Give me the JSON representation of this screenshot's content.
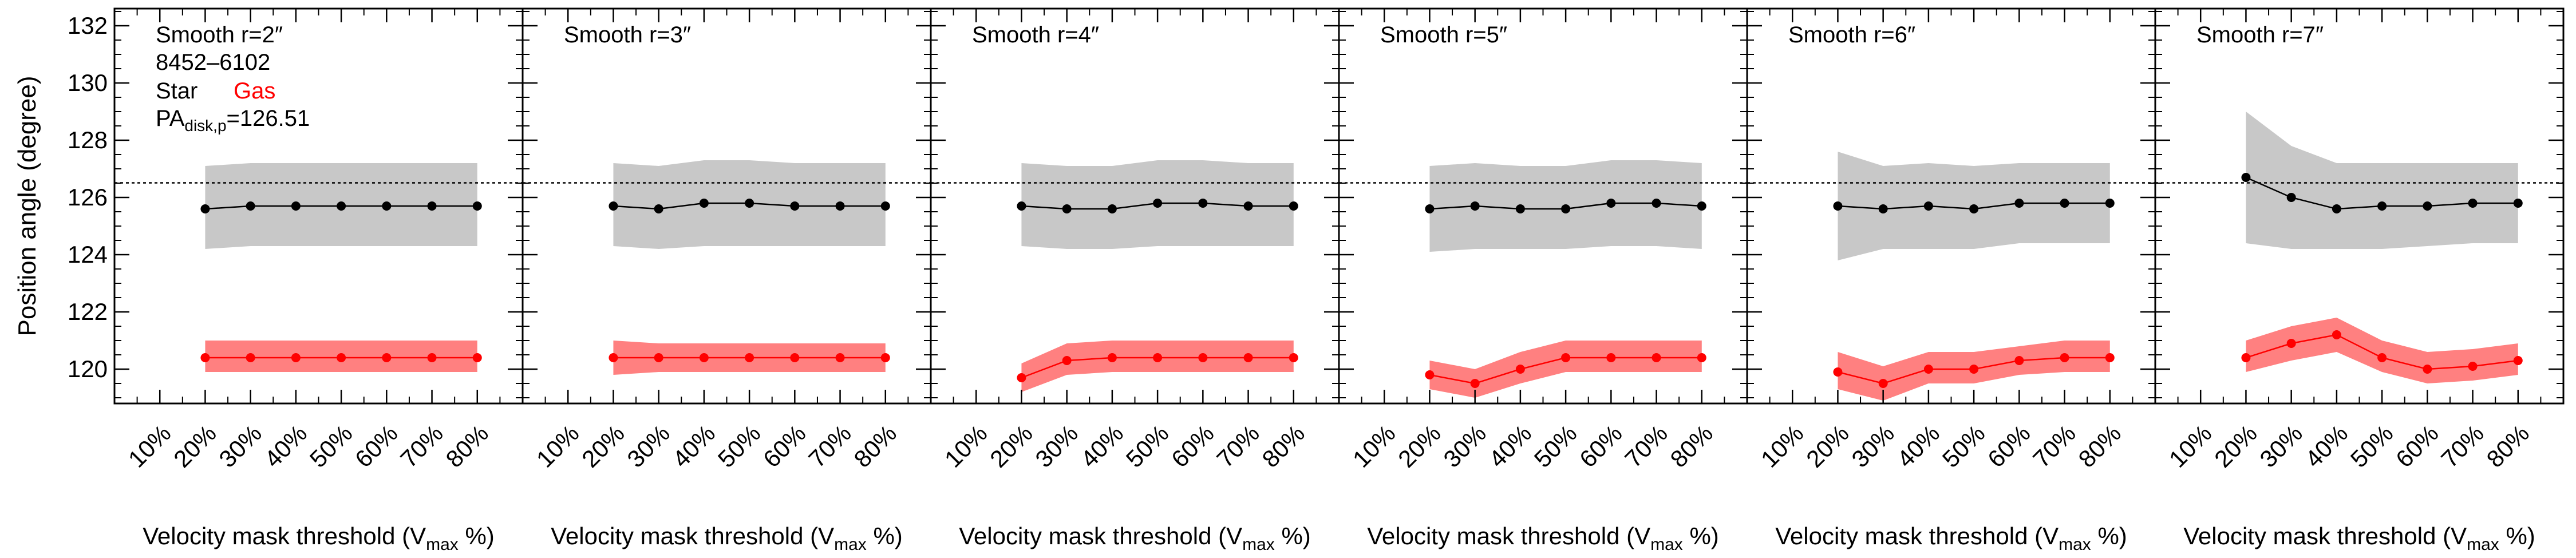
{
  "chart_data": {
    "type": "line",
    "galaxy_id": "8452–6102",
    "legend": {
      "star": "Star",
      "gas": "Gas"
    },
    "pa_label": {
      "main": "PA",
      "sub": "disk,p",
      "value": "=126.51"
    },
    "reference_line": 126.51,
    "ylabel": "Position angle (degree)",
    "xlabel": {
      "pre": "Velocity mask threshold (V",
      "sub": "max",
      "post": " %)"
    },
    "x_categories": [
      "10%",
      "20%",
      "30%",
      "40%",
      "50%",
      "60%",
      "70%",
      "80%"
    ],
    "xlim": [
      0,
      9
    ],
    "ylim": [
      118.8,
      132.6
    ],
    "yticks": [
      120,
      122,
      124,
      126,
      128,
      130,
      132
    ],
    "colors": {
      "star": "#000000",
      "star_band": "#c8c8c8",
      "gas": "#ff0000",
      "gas_band": "#ff8080"
    },
    "panels": [
      {
        "title": "Smooth r=2″",
        "star": {
          "x": [
            2,
            3,
            4,
            5,
            6,
            7,
            8
          ],
          "y": [
            125.6,
            125.7,
            125.7,
            125.7,
            125.7,
            125.7,
            125.7
          ],
          "lo": [
            124.2,
            124.3,
            124.3,
            124.3,
            124.3,
            124.3,
            124.3
          ],
          "hi": [
            127.1,
            127.2,
            127.2,
            127.2,
            127.2,
            127.2,
            127.2
          ]
        },
        "gas": {
          "x": [
            2,
            3,
            4,
            5,
            6,
            7,
            8
          ],
          "y": [
            120.4,
            120.4,
            120.4,
            120.4,
            120.4,
            120.4,
            120.4
          ],
          "lo": [
            119.9,
            119.9,
            119.9,
            119.9,
            119.9,
            119.9,
            119.9
          ],
          "hi": [
            121.0,
            121.0,
            121.0,
            121.0,
            121.0,
            121.0,
            121.0
          ]
        }
      },
      {
        "title": "Smooth r=3″",
        "star": {
          "x": [
            2,
            3,
            4,
            5,
            6,
            7,
            8
          ],
          "y": [
            125.7,
            125.6,
            125.8,
            125.8,
            125.7,
            125.7,
            125.7
          ],
          "lo": [
            124.3,
            124.2,
            124.3,
            124.3,
            124.3,
            124.3,
            124.3
          ],
          "hi": [
            127.2,
            127.1,
            127.3,
            127.3,
            127.2,
            127.2,
            127.2
          ]
        },
        "gas": {
          "x": [
            2,
            3,
            4,
            5,
            6,
            7,
            8
          ],
          "y": [
            120.4,
            120.4,
            120.4,
            120.4,
            120.4,
            120.4,
            120.4
          ],
          "lo": [
            119.8,
            119.9,
            119.9,
            119.9,
            119.9,
            119.9,
            119.9
          ],
          "hi": [
            121.0,
            120.9,
            120.9,
            120.9,
            120.9,
            120.9,
            120.9
          ]
        }
      },
      {
        "title": "Smooth r=4″",
        "star": {
          "x": [
            2,
            3,
            4,
            5,
            6,
            7,
            8
          ],
          "y": [
            125.7,
            125.6,
            125.6,
            125.8,
            125.8,
            125.7,
            125.7
          ],
          "lo": [
            124.3,
            124.2,
            124.2,
            124.3,
            124.3,
            124.3,
            124.3
          ],
          "hi": [
            127.2,
            127.1,
            127.1,
            127.3,
            127.3,
            127.2,
            127.2
          ]
        },
        "gas": {
          "x": [
            2,
            3,
            4,
            5,
            6,
            7,
            8
          ],
          "y": [
            119.7,
            120.3,
            120.4,
            120.4,
            120.4,
            120.4,
            120.4
          ],
          "lo": [
            119.2,
            119.8,
            119.9,
            119.9,
            119.9,
            119.9,
            119.9
          ],
          "hi": [
            120.2,
            120.9,
            121.0,
            121.0,
            121.0,
            121.0,
            121.0
          ]
        }
      },
      {
        "title": "Smooth r=5″",
        "star": {
          "x": [
            2,
            3,
            4,
            5,
            6,
            7,
            8
          ],
          "y": [
            125.6,
            125.7,
            125.6,
            125.6,
            125.8,
            125.8,
            125.7
          ],
          "lo": [
            124.1,
            124.2,
            124.2,
            124.2,
            124.3,
            124.3,
            124.2
          ],
          "hi": [
            127.1,
            127.2,
            127.1,
            127.1,
            127.3,
            127.3,
            127.2
          ]
        },
        "gas": {
          "x": [
            2,
            3,
            4,
            5,
            6,
            7,
            8
          ],
          "y": [
            119.8,
            119.5,
            120.0,
            120.4,
            120.4,
            120.4,
            120.4
          ],
          "lo": [
            119.3,
            119.0,
            119.5,
            119.9,
            119.9,
            119.9,
            119.9
          ],
          "hi": [
            120.3,
            120.0,
            120.6,
            121.0,
            121.0,
            121.0,
            121.0
          ]
        }
      },
      {
        "title": "Smooth r=6″",
        "star": {
          "x": [
            2,
            3,
            4,
            5,
            6,
            7,
            8
          ],
          "y": [
            125.7,
            125.6,
            125.7,
            125.6,
            125.8,
            125.8,
            125.8
          ],
          "lo": [
            123.8,
            124.2,
            124.2,
            124.2,
            124.4,
            124.4,
            124.4
          ],
          "hi": [
            127.6,
            127.1,
            127.2,
            127.1,
            127.2,
            127.2,
            127.2
          ]
        },
        "gas": {
          "x": [
            2,
            3,
            4,
            5,
            6,
            7,
            8
          ],
          "y": [
            119.9,
            119.5,
            120.0,
            120.0,
            120.3,
            120.4,
            120.4
          ],
          "lo": [
            119.3,
            118.9,
            119.5,
            119.5,
            119.8,
            119.9,
            119.9
          ],
          "hi": [
            120.6,
            120.1,
            120.6,
            120.6,
            120.8,
            121.0,
            121.0
          ]
        }
      },
      {
        "title": "Smooth r=7″",
        "star": {
          "x": [
            2,
            3,
            4,
            5,
            6,
            7,
            8
          ],
          "y": [
            126.7,
            126.0,
            125.6,
            125.7,
            125.7,
            125.8,
            125.8
          ],
          "lo": [
            124.4,
            124.2,
            124.2,
            124.2,
            124.3,
            124.4,
            124.4
          ],
          "hi": [
            129.0,
            127.8,
            127.2,
            127.2,
            127.2,
            127.2,
            127.2
          ]
        },
        "gas": {
          "x": [
            2,
            3,
            4,
            5,
            6,
            7,
            8
          ],
          "y": [
            120.4,
            120.9,
            121.2,
            120.4,
            120.0,
            120.1,
            120.3
          ],
          "lo": [
            119.9,
            120.3,
            120.6,
            119.9,
            119.5,
            119.6,
            119.8
          ],
          "hi": [
            121.0,
            121.5,
            121.8,
            121.0,
            120.6,
            120.7,
            120.9
          ]
        }
      }
    ]
  }
}
